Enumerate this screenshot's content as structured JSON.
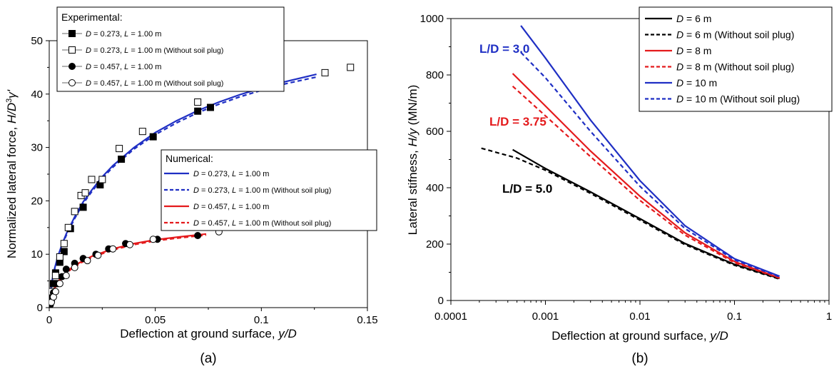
{
  "chart_data": [
    {
      "type": "scatter",
      "panel_label": "(a)",
      "xlabel_prefix": "Deflection at ground surface, ",
      "xlabel_var": "y/D",
      "ylabel_prefix": "Normalized lateral force, ",
      "ylabel_var": "H/D",
      "ylabel_sup": "3",
      "ylabel_suffix": "γ'",
      "xlim": [
        0,
        0.15
      ],
      "ylim": [
        0,
        50
      ],
      "xticks": [
        0,
        0.05,
        0.1,
        0.15
      ],
      "xtick_labels": [
        "0",
        "0.05",
        "0.1",
        "0.15"
      ],
      "yticks": [
        0,
        10,
        20,
        30,
        40,
        50
      ],
      "ytick_labels": [
        "0",
        "10",
        "20",
        "30",
        "40",
        "50"
      ],
      "legend_experimental_title": "Experimental:",
      "legend_numerical_title": "Numerical:",
      "experimental_series": [
        {
          "d_value": "0.273",
          "l_value": "1.00",
          "note": "",
          "marker": "square",
          "filled": true,
          "x": [
            0,
            0.0005,
            0.001,
            0.002,
            0.003,
            0.005,
            0.007,
            0.01,
            0.016,
            0.024,
            0.034,
            0.049,
            0.07,
            0.076
          ],
          "y": [
            0,
            1.5,
            2.8,
            4.5,
            6.5,
            8.5,
            10.5,
            14.8,
            18.8,
            23,
            27.8,
            32,
            36.8,
            37.5
          ]
        },
        {
          "d_value": "0.273",
          "l_value": "1.00",
          "note": "(Without soil plug)",
          "marker": "square",
          "filled": false,
          "x": [
            0,
            0.001,
            0.003,
            0.005,
            0.007,
            0.009,
            0.012,
            0.015,
            0.017,
            0.02,
            0.025,
            0.033,
            0.044,
            0.07,
            0.096,
            0.13,
            0.142
          ],
          "y": [
            0,
            3,
            6,
            9.5,
            12,
            15,
            18,
            21,
            21.5,
            24,
            24,
            29.8,
            33,
            38.5,
            41.5,
            44,
            45
          ]
        },
        {
          "d_value": "0.457",
          "l_value": "1.00",
          "note": "",
          "marker": "circle",
          "filled": true,
          "x": [
            0.0005,
            0.001,
            0.002,
            0.004,
            0.006,
            0.008,
            0.012,
            0.016,
            0.022,
            0.028,
            0.036,
            0.051,
            0.07
          ],
          "y": [
            0.5,
            1.2,
            2.8,
            4.5,
            5.8,
            7.2,
            8.3,
            9.2,
            10,
            11,
            12,
            12.8,
            13.5
          ]
        },
        {
          "d_value": "0.457",
          "l_value": "1.00",
          "note": "(Without soil plug)",
          "marker": "circle",
          "filled": false,
          "x": [
            0.001,
            0.002,
            0.003,
            0.005,
            0.008,
            0.012,
            0.018,
            0.023,
            0.03,
            0.038,
            0.049,
            0.08
          ],
          "y": [
            1,
            2,
            3,
            4.5,
            6,
            7.5,
            8.8,
            9.8,
            11,
            11.8,
            12.8,
            14.2
          ]
        }
      ],
      "numerical_series": [
        {
          "d_value": "0.273",
          "l_value": "1.00",
          "note": "",
          "color": "#1f2fc4",
          "dashed": false,
          "x": [
            0,
            0.0005,
            0.001,
            0.002,
            0.004,
            0.006,
            0.008,
            0.012,
            0.016,
            0.02,
            0.025,
            0.03,
            0.04,
            0.05,
            0.06,
            0.07,
            0.08,
            0.09,
            0.1,
            0.11,
            0.126
          ],
          "y": [
            0,
            2.5,
            4.2,
            6.5,
            9.5,
            11.8,
            13.8,
            17,
            19.8,
            22,
            24.5,
            26.6,
            30,
            32.8,
            35,
            36.9,
            38.5,
            39.9,
            41.1,
            42.2,
            43.7
          ]
        },
        {
          "d_value": "0.273",
          "l_value": "1.00",
          "note": "(Without soil plug)",
          "color": "#1f2fc4",
          "dashed": true,
          "x": [
            0,
            0.0005,
            0.001,
            0.002,
            0.004,
            0.006,
            0.008,
            0.012,
            0.016,
            0.02,
            0.025,
            0.03,
            0.04,
            0.05,
            0.06,
            0.07,
            0.08,
            0.09,
            0.1,
            0.11,
            0.126
          ],
          "y": [
            0,
            2.4,
            4.1,
            6.3,
            9.3,
            11.6,
            13.5,
            16.7,
            19.5,
            21.7,
            24.2,
            26.3,
            29.7,
            32.4,
            34.6,
            36.5,
            38.1,
            39.5,
            40.7,
            41.8,
            43.2
          ]
        },
        {
          "d_value": "0.457",
          "l_value": "1.00",
          "note": "",
          "color": "#e41a1c",
          "dashed": false,
          "x": [
            0,
            0.0005,
            0.001,
            0.002,
            0.004,
            0.006,
            0.01,
            0.015,
            0.02,
            0.03,
            0.04,
            0.05,
            0.06,
            0.074
          ],
          "y": [
            0,
            1.2,
            2,
            3.2,
            4.8,
            5.8,
            7.3,
            8.6,
            9.6,
            11,
            12,
            12.7,
            13.2,
            13.8
          ]
        },
        {
          "d_value": "0.457",
          "l_value": "1.00",
          "note": "(Without soil plug)",
          "color": "#e41a1c",
          "dashed": true,
          "x": [
            0,
            0.0005,
            0.001,
            0.002,
            0.004,
            0.006,
            0.01,
            0.015,
            0.02,
            0.03,
            0.04,
            0.05,
            0.06,
            0.074
          ],
          "y": [
            0,
            1.1,
            1.9,
            3.1,
            4.6,
            5.6,
            7.1,
            8.4,
            9.4,
            10.8,
            11.8,
            12.5,
            13,
            13.6
          ]
        }
      ]
    },
    {
      "type": "line",
      "panel_label": "(b)",
      "xscale": "log",
      "xlabel_prefix": "Deflection at ground surface, ",
      "xlabel_var": "y/D",
      "ylabel_prefix": "Lateral stifness, ",
      "ylabel_var": "H/y",
      "ylabel_suffix": " (MN/m)",
      "xlim": [
        0.0001,
        1
      ],
      "ylim": [
        0,
        1000
      ],
      "xticks": [
        0.0001,
        0.001,
        0.01,
        0.1,
        1
      ],
      "xtick_labels": [
        "0.0001",
        "0.001",
        "0.01",
        "0.1",
        "1"
      ],
      "yticks": [
        0,
        200,
        400,
        600,
        800,
        1000
      ],
      "ytick_labels": [
        "0",
        "200",
        "400",
        "600",
        "800",
        "1000"
      ],
      "series": [
        {
          "d_value": "6 m",
          "note": "",
          "color": "#000000",
          "dashed": false,
          "x": [
            0.00045,
            0.001,
            0.003,
            0.01,
            0.03,
            0.1,
            0.3
          ],
          "y": [
            535,
            468,
            385,
            290,
            202,
            128,
            78
          ]
        },
        {
          "d_value": "6 m",
          "note": "(Without soil plug)",
          "color": "#000000",
          "dashed": true,
          "x": [
            0.00021,
            0.0005,
            0.001,
            0.003,
            0.01,
            0.03,
            0.1,
            0.3
          ],
          "y": [
            540,
            505,
            462,
            380,
            285,
            198,
            125,
            76
          ]
        },
        {
          "d_value": "8 m",
          "note": "",
          "color": "#e41a1c",
          "dashed": false,
          "x": [
            0.00045,
            0.001,
            0.003,
            0.01,
            0.03,
            0.1,
            0.3
          ],
          "y": [
            805,
            690,
            530,
            370,
            240,
            138,
            80
          ]
        },
        {
          "d_value": "8 m",
          "note": "(Without soil plug)",
          "color": "#e41a1c",
          "dashed": true,
          "x": [
            0.00045,
            0.001,
            0.003,
            0.01,
            0.03,
            0.1,
            0.3
          ],
          "y": [
            760,
            655,
            510,
            355,
            232,
            134,
            79
          ]
        },
        {
          "d_value": "10 m",
          "note": "",
          "color": "#1f2fc4",
          "dashed": false,
          "x": [
            0.00055,
            0.001,
            0.003,
            0.01,
            0.03,
            0.1,
            0.3
          ],
          "y": [
            975,
            860,
            640,
            425,
            265,
            148,
            86
          ]
        },
        {
          "d_value": "10 m",
          "note": "(Without soil plug)",
          "color": "#1f2fc4",
          "dashed": true,
          "x": [
            0.00055,
            0.001,
            0.003,
            0.01,
            0.03,
            0.1,
            0.3
          ],
          "y": [
            880,
            790,
            600,
            405,
            255,
            144,
            84
          ]
        }
      ],
      "annotations": [
        {
          "text": "L/D = 3.0",
          "color": "#1f2fc4"
        },
        {
          "text": "L/D = 3.75",
          "color": "#e41a1c"
        },
        {
          "text": "L/D = 5.0",
          "color": "#000000"
        }
      ]
    }
  ]
}
